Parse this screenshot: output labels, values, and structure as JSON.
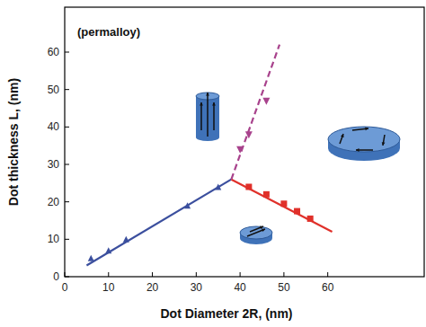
{
  "chart_data": {
    "type": "scatter",
    "annotation": "(permalloy)",
    "x_label": "Dot Diameter 2R, (nm)",
    "y_label": "Dot thickness L, (nm)",
    "xlim": [
      0,
      82
    ],
    "xticks": [
      0,
      10,
      20,
      30,
      40,
      50,
      60
    ],
    "ylim": [
      0,
      72
    ],
    "yticks": [
      0,
      10,
      20,
      30,
      40,
      50,
      60
    ],
    "grid": false,
    "series": [
      {
        "type": "scatter",
        "color": "#3b4f9e",
        "marker": "triangle-up",
        "x": [
          6,
          10,
          14,
          28,
          35
        ],
        "values": [
          5,
          7,
          10,
          19,
          24
        ]
      },
      {
        "type": "line",
        "color": "#3b4f9e",
        "line_style": "solid",
        "x": [
          5,
          38
        ],
        "values": [
          3,
          26
        ]
      },
      {
        "type": "scatter",
        "color": "#e0302a",
        "marker": "square",
        "x": [
          42,
          46,
          50,
          53,
          56
        ],
        "values": [
          24,
          22,
          19.5,
          17.5,
          15.5
        ]
      },
      {
        "type": "line",
        "color": "#e0302a",
        "line_style": "solid",
        "x": [
          38,
          61
        ],
        "values": [
          26,
          12
        ]
      },
      {
        "type": "scatter",
        "color": "#a8428c",
        "marker": "triangle-down",
        "x": [
          40,
          42,
          46
        ],
        "values": [
          34,
          38,
          47
        ]
      },
      {
        "type": "line",
        "color": "#a8428c",
        "line_style": "dashed",
        "x": [
          38,
          49
        ],
        "values": [
          26,
          62
        ]
      }
    ]
  }
}
